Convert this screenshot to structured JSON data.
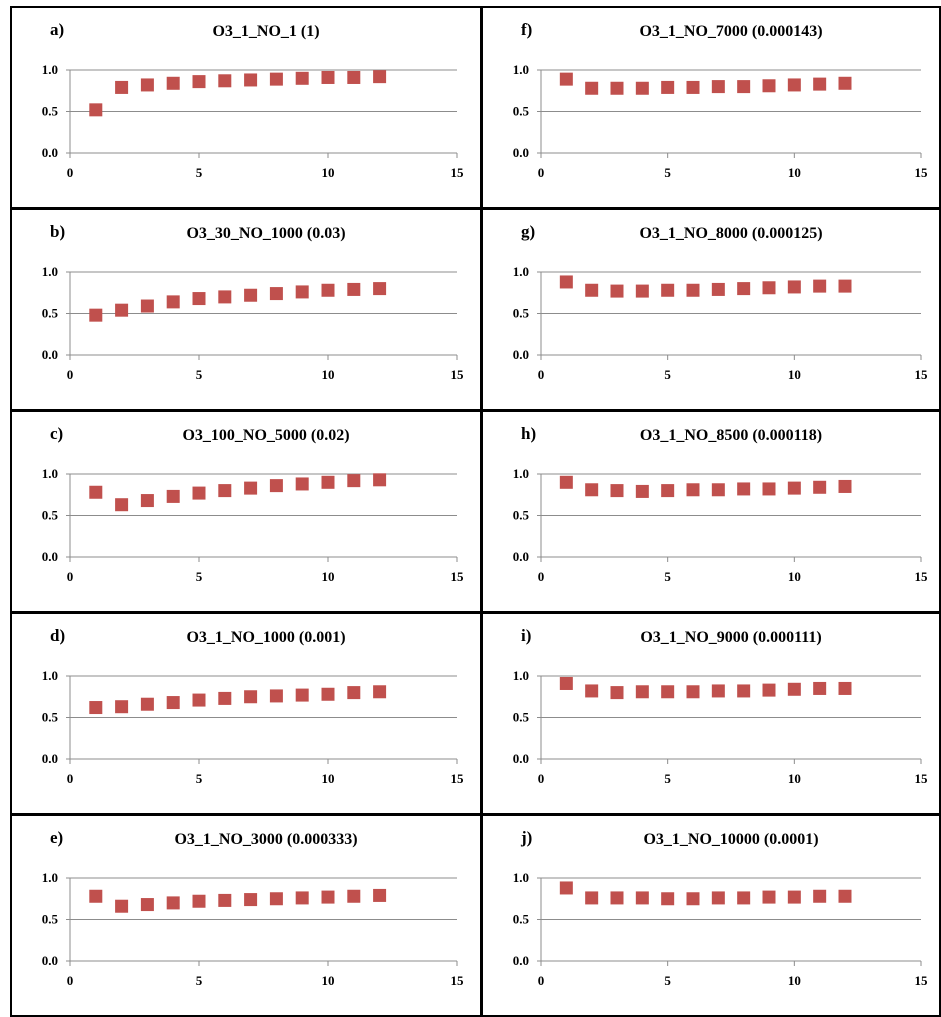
{
  "colors": {
    "marker": "#c0504d",
    "gridline": "#8c8c8c",
    "axis": "#8c8c8c",
    "border": "#000000"
  },
  "chart_data": [
    {
      "id": "a",
      "letter": "a)",
      "title": "O3_1_NO_1 (1)",
      "type": "scatter",
      "marker": "square",
      "xlim": [
        0,
        15
      ],
      "ylim": [
        0,
        1
      ],
      "xticks": [
        "0",
        "5",
        "10",
        "15"
      ],
      "yticks": [
        "0.0",
        "0.5",
        "1.0"
      ],
      "grid": "horizontal",
      "x": [
        1,
        2,
        3,
        4,
        5,
        6,
        7,
        8,
        9,
        10,
        11,
        12
      ],
      "y": [
        0.52,
        0.79,
        0.82,
        0.84,
        0.86,
        0.87,
        0.88,
        0.89,
        0.9,
        0.91,
        0.91,
        0.92
      ]
    },
    {
      "id": "b",
      "letter": "b)",
      "title": "O3_30_NO_1000 (0.03)",
      "type": "scatter",
      "marker": "square",
      "xlim": [
        0,
        15
      ],
      "ylim": [
        0,
        1
      ],
      "xticks": [
        "0",
        "5",
        "10",
        "15"
      ],
      "yticks": [
        "0.0",
        "0.5",
        "1.0"
      ],
      "grid": "horizontal",
      "x": [
        1,
        2,
        3,
        4,
        5,
        6,
        7,
        8,
        9,
        10,
        11,
        12
      ],
      "y": [
        0.48,
        0.54,
        0.59,
        0.64,
        0.68,
        0.7,
        0.72,
        0.74,
        0.76,
        0.78,
        0.79,
        0.8
      ]
    },
    {
      "id": "c",
      "letter": "c)",
      "title": "O3_100_NO_5000 (0.02)",
      "type": "scatter",
      "marker": "square",
      "xlim": [
        0,
        15
      ],
      "ylim": [
        0,
        1
      ],
      "xticks": [
        "0",
        "5",
        "10",
        "15"
      ],
      "yticks": [
        "0.0",
        "0.5",
        "1.0"
      ],
      "grid": "horizontal",
      "x": [
        1,
        2,
        3,
        4,
        5,
        6,
        7,
        8,
        9,
        10,
        11,
        12
      ],
      "y": [
        0.78,
        0.63,
        0.68,
        0.73,
        0.77,
        0.8,
        0.83,
        0.86,
        0.88,
        0.9,
        0.92,
        0.93
      ]
    },
    {
      "id": "d",
      "letter": "d)",
      "title": "O3_1_NO_1000 (0.001)",
      "type": "scatter",
      "marker": "square",
      "xlim": [
        0,
        15
      ],
      "ylim": [
        0,
        1
      ],
      "xticks": [
        "0",
        "5",
        "10",
        "15"
      ],
      "yticks": [
        "0.0",
        "0.5",
        "1.0"
      ],
      "grid": "horizontal",
      "x": [
        1,
        2,
        3,
        4,
        5,
        6,
        7,
        8,
        9,
        10,
        11,
        12
      ],
      "y": [
        0.62,
        0.63,
        0.66,
        0.68,
        0.71,
        0.73,
        0.75,
        0.76,
        0.77,
        0.78,
        0.8,
        0.81
      ]
    },
    {
      "id": "e",
      "letter": "e)",
      "title": "O3_1_NO_3000 (0.000333)",
      "type": "scatter",
      "marker": "square",
      "xlim": [
        0,
        15
      ],
      "ylim": [
        0,
        1
      ],
      "xticks": [
        "0",
        "5",
        "10",
        "15"
      ],
      "yticks": [
        "0.0",
        "0.5",
        "1.0"
      ],
      "grid": "horizontal",
      "x": [
        1,
        2,
        3,
        4,
        5,
        6,
        7,
        8,
        9,
        10,
        11,
        12
      ],
      "y": [
        0.78,
        0.66,
        0.68,
        0.7,
        0.72,
        0.73,
        0.74,
        0.75,
        0.76,
        0.77,
        0.78,
        0.79
      ]
    },
    {
      "id": "f",
      "letter": "f)",
      "title": "O3_1_NO_7000 (0.000143)",
      "type": "scatter",
      "marker": "square",
      "xlim": [
        0,
        15
      ],
      "ylim": [
        0,
        1
      ],
      "xticks": [
        "0",
        "5",
        "10",
        "15"
      ],
      "yticks": [
        "0.0",
        "0.5",
        "1.0"
      ],
      "grid": "horizontal",
      "x": [
        1,
        2,
        3,
        4,
        5,
        6,
        7,
        8,
        9,
        10,
        11,
        12
      ],
      "y": [
        0.89,
        0.78,
        0.78,
        0.78,
        0.79,
        0.79,
        0.8,
        0.8,
        0.81,
        0.82,
        0.83,
        0.84
      ]
    },
    {
      "id": "g",
      "letter": "g)",
      "title": "O3_1_NO_8000 (0.000125)",
      "type": "scatter",
      "marker": "square",
      "xlim": [
        0,
        15
      ],
      "ylim": [
        0,
        1
      ],
      "xticks": [
        "0",
        "5",
        "10",
        "15"
      ],
      "yticks": [
        "0.0",
        "0.5",
        "1.0"
      ],
      "grid": "horizontal",
      "x": [
        1,
        2,
        3,
        4,
        5,
        6,
        7,
        8,
        9,
        10,
        11,
        12
      ],
      "y": [
        0.88,
        0.78,
        0.77,
        0.77,
        0.78,
        0.78,
        0.79,
        0.8,
        0.81,
        0.82,
        0.83,
        0.83
      ]
    },
    {
      "id": "h",
      "letter": "h)",
      "title": "O3_1_NO_8500 (0.000118)",
      "type": "scatter",
      "marker": "square",
      "xlim": [
        0,
        15
      ],
      "ylim": [
        0,
        1
      ],
      "xticks": [
        "0",
        "5",
        "10",
        "15"
      ],
      "yticks": [
        "0.0",
        "0.5",
        "1.0"
      ],
      "grid": "horizontal",
      "x": [
        1,
        2,
        3,
        4,
        5,
        6,
        7,
        8,
        9,
        10,
        11,
        12
      ],
      "y": [
        0.9,
        0.81,
        0.8,
        0.79,
        0.8,
        0.81,
        0.81,
        0.82,
        0.82,
        0.83,
        0.84,
        0.85
      ]
    },
    {
      "id": "i",
      "letter": "i)",
      "title": "O3_1_NO_9000 (0.000111)",
      "type": "scatter",
      "marker": "square",
      "xlim": [
        0,
        15
      ],
      "ylim": [
        0,
        1
      ],
      "xticks": [
        "0",
        "5",
        "10",
        "15"
      ],
      "yticks": [
        "0.0",
        "0.5",
        "1.0"
      ],
      "grid": "horizontal",
      "x": [
        1,
        2,
        3,
        4,
        5,
        6,
        7,
        8,
        9,
        10,
        11,
        12
      ],
      "y": [
        0.91,
        0.82,
        0.8,
        0.81,
        0.81,
        0.81,
        0.82,
        0.82,
        0.83,
        0.84,
        0.85,
        0.85
      ]
    },
    {
      "id": "j",
      "letter": "j)",
      "title": "O3_1_NO_10000 (0.0001)",
      "type": "scatter",
      "marker": "square",
      "xlim": [
        0,
        15
      ],
      "ylim": [
        0,
        1
      ],
      "xticks": [
        "0",
        "5",
        "10",
        "15"
      ],
      "yticks": [
        "0.0",
        "0.5",
        "1.0"
      ],
      "grid": "horizontal",
      "x": [
        1,
        2,
        3,
        4,
        5,
        6,
        7,
        8,
        9,
        10,
        11,
        12
      ],
      "y": [
        0.88,
        0.76,
        0.76,
        0.76,
        0.75,
        0.75,
        0.76,
        0.76,
        0.77,
        0.77,
        0.78,
        0.78
      ]
    }
  ]
}
